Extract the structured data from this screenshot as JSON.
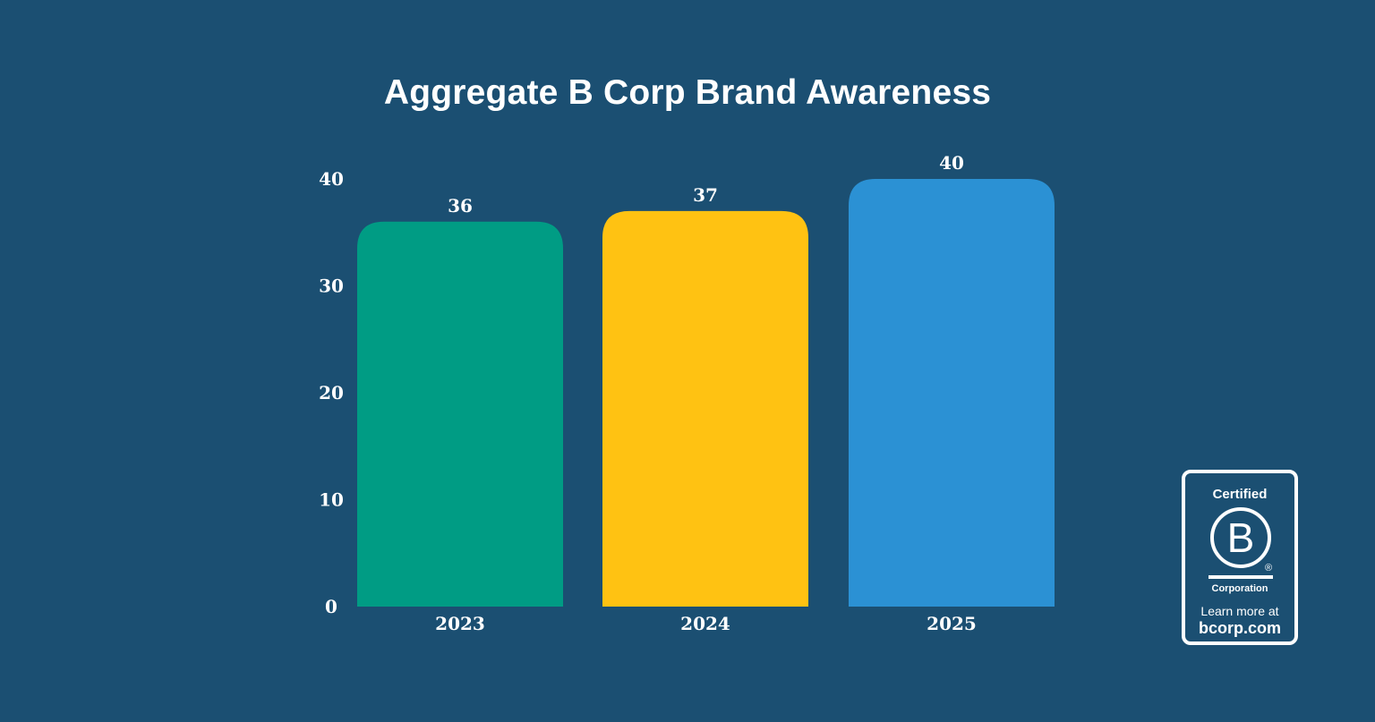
{
  "chart_data": {
    "type": "bar",
    "title": "Aggregate B Corp Brand Awareness",
    "categories": [
      "2023",
      "2024",
      "2025"
    ],
    "values": [
      36,
      37,
      40
    ],
    "data_labels": [
      "36",
      "37",
      "40"
    ],
    "bar_colors": [
      "#009c84",
      "#ffc212",
      "#2b91d4"
    ],
    "ylim": [
      0,
      40
    ],
    "yticks": [
      0,
      10,
      20,
      30,
      40
    ],
    "ytick_labels": [
      "0",
      "10",
      "20",
      "30",
      "40"
    ],
    "xlabel": "",
    "ylabel": "",
    "grid": false,
    "legend": "none"
  },
  "badge": {
    "certified": "Certified",
    "letter": "B",
    "registered": "®",
    "corporation": "Corporation",
    "learn_more": "Learn more at",
    "url": "bcorp.com"
  },
  "colors": {
    "background": "#1b4f72",
    "text": "#ffffff"
  }
}
